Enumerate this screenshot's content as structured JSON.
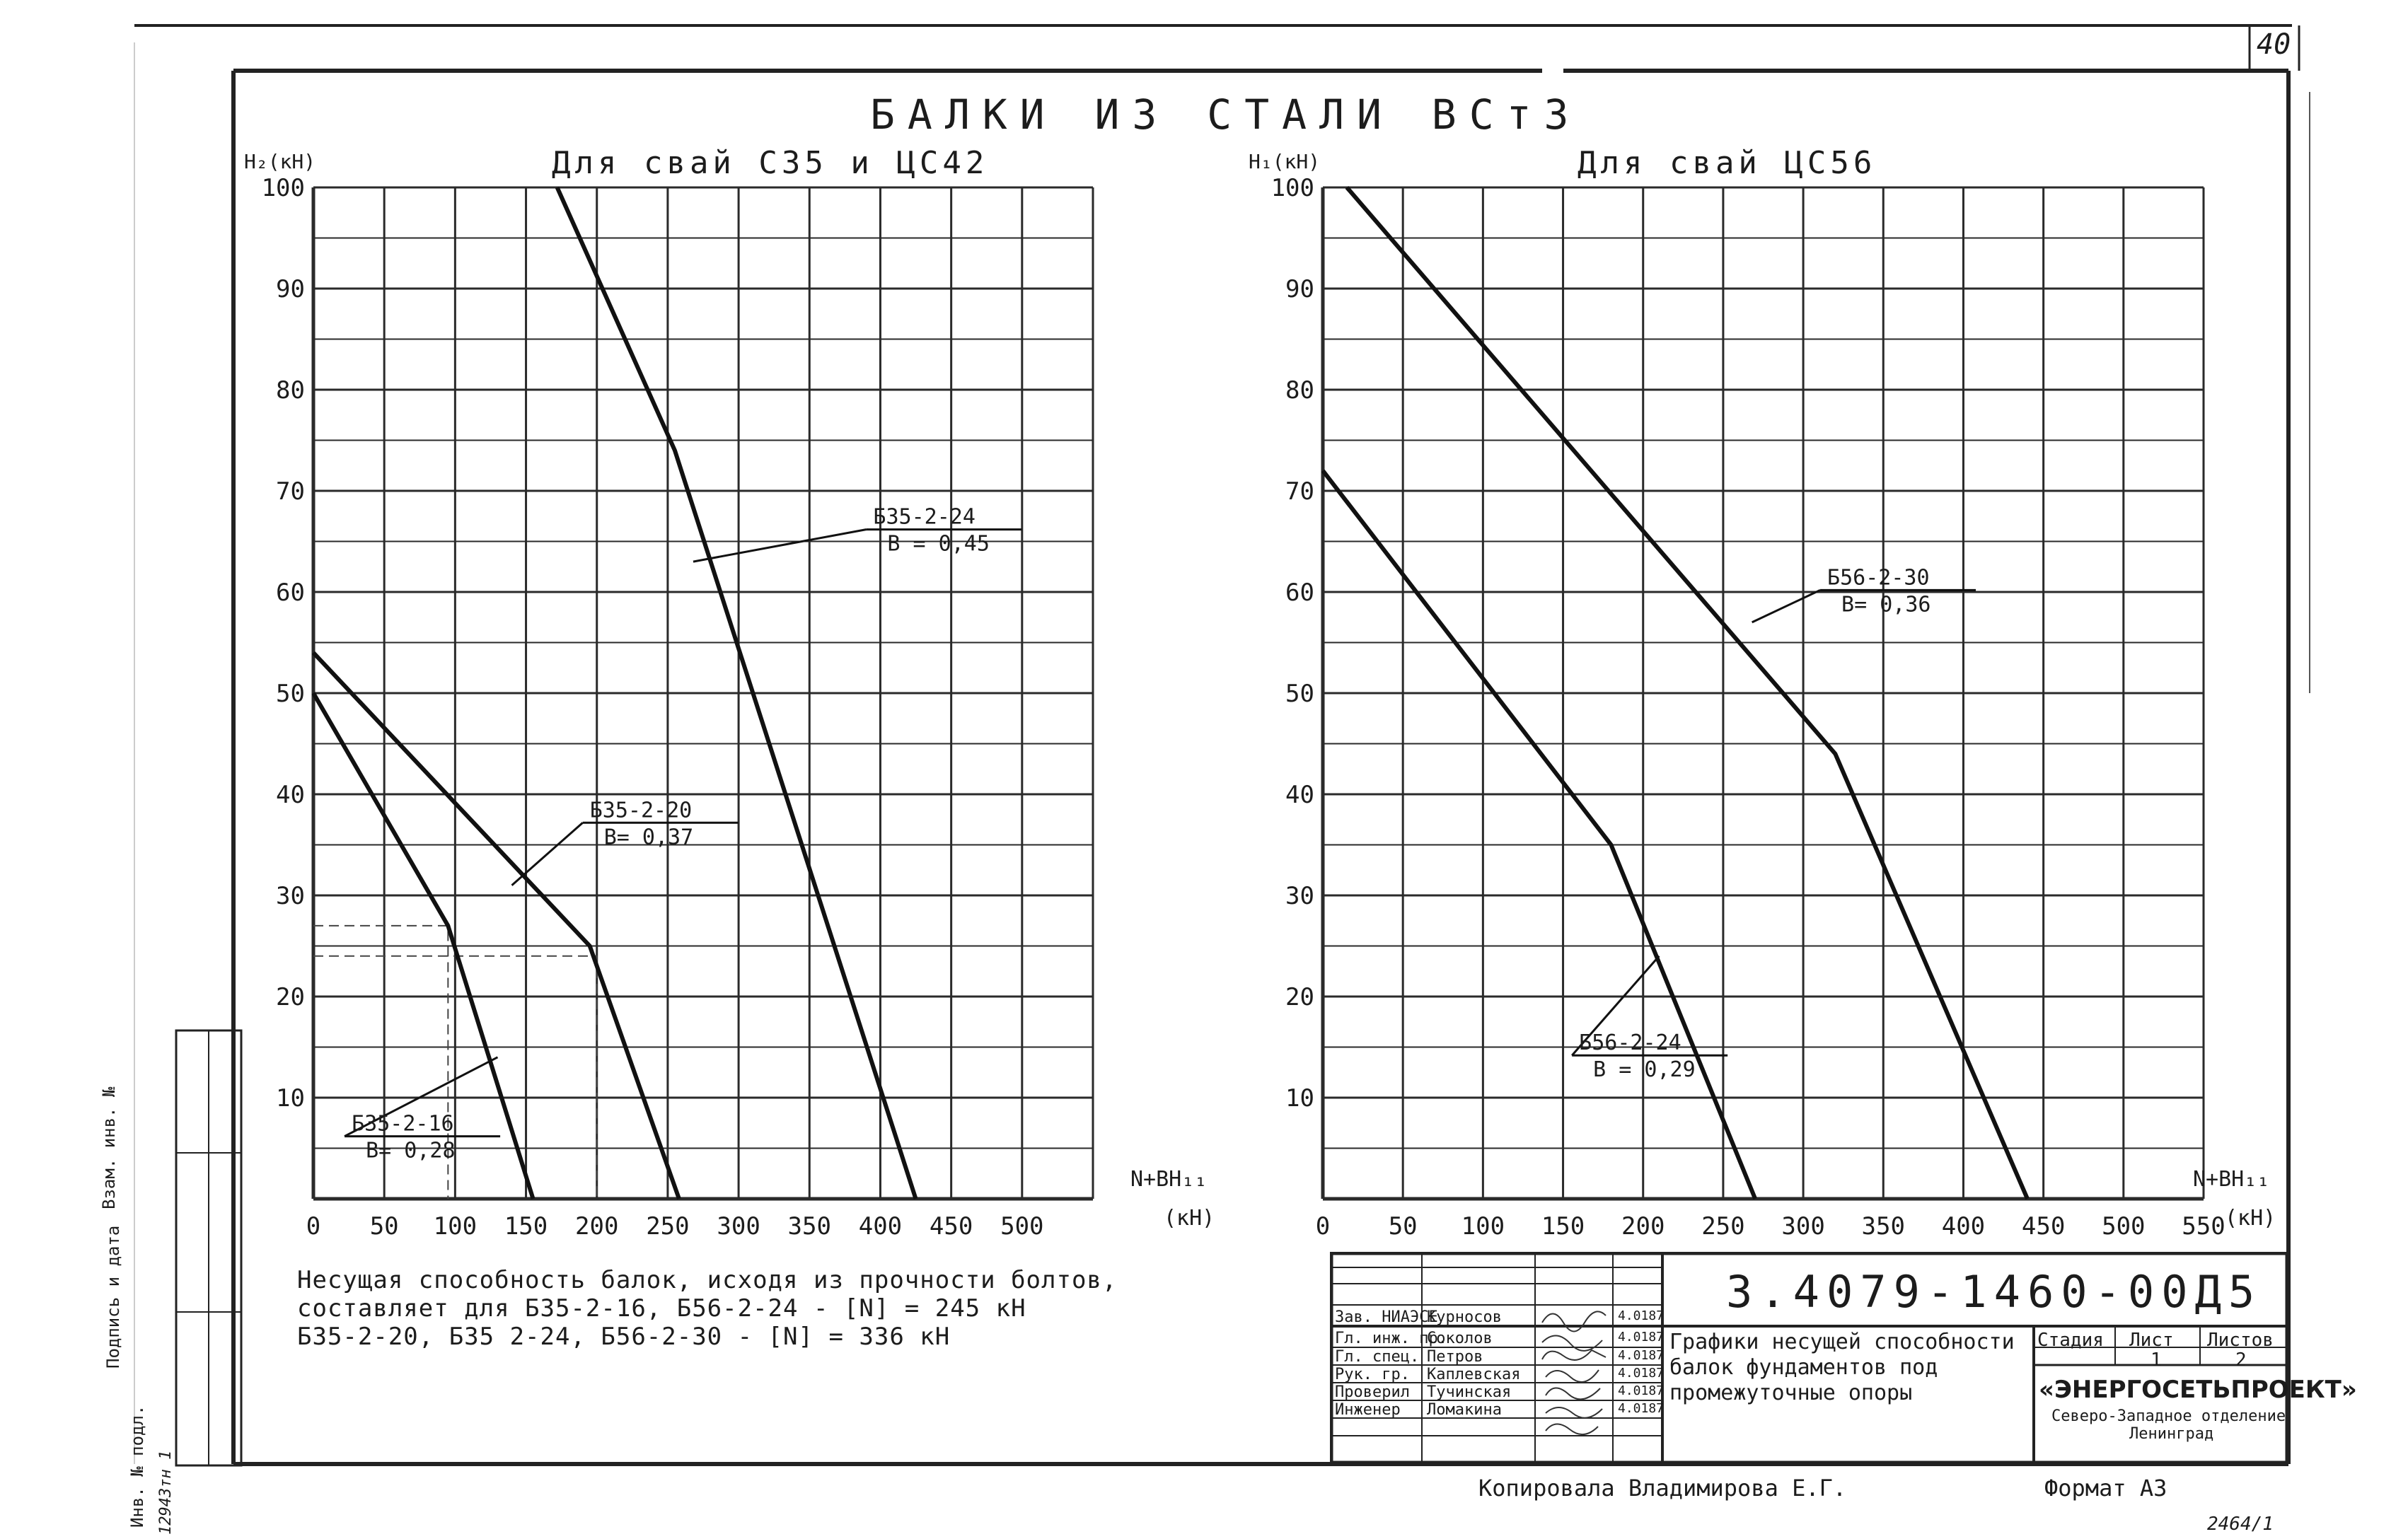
{
  "sheet": {
    "corner_number": "40",
    "main_title": "БАЛКИ ИЗ СТАЛИ ВСт3",
    "copied_by": "Копировала Владимирова Е.Г.",
    "format": "Формат А3",
    "archive_number": "2464/1"
  },
  "side_stamp": {
    "labels": [
      "Инв. № подл.",
      "Подпись и дата",
      "Взам. инв. №"
    ],
    "inv_value": "12943тн 1"
  },
  "note_lines": [
    "Несущая способность балок, исходя из прочности болтов,",
    "составляет для Б35-2-16, Б56-2-24 - [N] = 245 кН",
    "Б35-2-20, Б35 2-24, Б56-2-30 - [N] = 336 кН"
  ],
  "chart_data": [
    {
      "type": "line",
      "title": "Для свай С35 и ЦС42",
      "ylabel": "H₂(кН)",
      "xlabel": "N+BH₁₁",
      "x_unit": "(кН)",
      "xlim": [
        0,
        550
      ],
      "ylim": [
        0,
        100
      ],
      "x_ticks": [
        0,
        50,
        100,
        150,
        200,
        250,
        300,
        350,
        400,
        450,
        500
      ],
      "y_ticks": [
        10,
        20,
        30,
        40,
        50,
        60,
        70,
        80,
        90,
        100
      ],
      "series": [
        {
          "name": "Б35-2-16",
          "name2": "B= 0,28",
          "x": [
            0,
            95,
            155
          ],
          "y": [
            50,
            27,
            0
          ],
          "label_at": [
            27,
            8,
            130,
            14
          ]
        },
        {
          "name": "Б35-2-20",
          "name2": "B= 0,37",
          "x": [
            0,
            195,
            258
          ],
          "y": [
            54,
            25,
            0
          ],
          "label_at": [
            195,
            39,
            140,
            31
          ]
        },
        {
          "name": "Б35-2-24",
          "name2": "B = 0,45",
          "x": [
            172,
            255,
            425
          ],
          "y": [
            100,
            74,
            0
          ],
          "label_at": [
            395,
            68,
            268,
            63
          ]
        }
      ],
      "guides": [
        {
          "x": 95,
          "y": 27
        },
        {
          "x": 200,
          "y": 24
        }
      ]
    },
    {
      "type": "line",
      "title": "Для свай ЦС56",
      "ylabel": "H₁(кН)",
      "xlabel": "N+BH₁₁",
      "x_unit": "(кН)",
      "xlim": [
        0,
        550
      ],
      "ylim": [
        0,
        100
      ],
      "x_ticks": [
        0,
        50,
        100,
        150,
        200,
        250,
        300,
        350,
        400,
        450,
        500,
        550
      ],
      "y_ticks": [
        10,
        20,
        30,
        40,
        50,
        60,
        70,
        80,
        90,
        100
      ],
      "series": [
        {
          "name": "Б56-2-24",
          "name2": "B = 0,29",
          "x": [
            0,
            180,
            270
          ],
          "y": [
            72,
            35,
            0
          ],
          "label_at": [
            160,
            16,
            210,
            24
          ]
        },
        {
          "name": "Б56-2-30",
          "name2": "B= 0,36",
          "x": [
            15,
            320,
            440
          ],
          "y": [
            100,
            44,
            0
          ],
          "label_at": [
            315,
            62,
            268,
            57
          ]
        }
      ],
      "guides": []
    }
  ],
  "title_block": {
    "code": "3.4079-1460-00Д5",
    "caption": [
      "Графики несущей способности",
      "балок фундаментов под",
      "промежуточные опоры"
    ],
    "rows": [
      {
        "role": "Зав. НИАЭСЕ",
        "name": "Курносов",
        "date": "4.0187"
      },
      {
        "role": "Гл. инж. пр.",
        "name": "Соколов",
        "date": "4.0187"
      },
      {
        "role": "Гл. спец.",
        "name": "Петров",
        "date": "4.0187"
      },
      {
        "role": "Рук. гр.",
        "name": "Каплевская",
        "date": "4.0187"
      },
      {
        "role": "Проверил",
        "name": "Тучинская",
        "date": "4.0187"
      },
      {
        "role": "Инженер",
        "name": "Ломакина",
        "date": "4.0187"
      }
    ],
    "stage_label": "Стадия",
    "sheet_label": "Лист",
    "sheets_label": "Листов",
    "stage_value": "",
    "sheet_value": "1",
    "sheets_value": "2",
    "org_name": "«ЭНЕРГОСЕТЬПРОЕКТ»",
    "org_sub1": "Северо-Западное отделение",
    "org_sub2": "Ленинград"
  }
}
